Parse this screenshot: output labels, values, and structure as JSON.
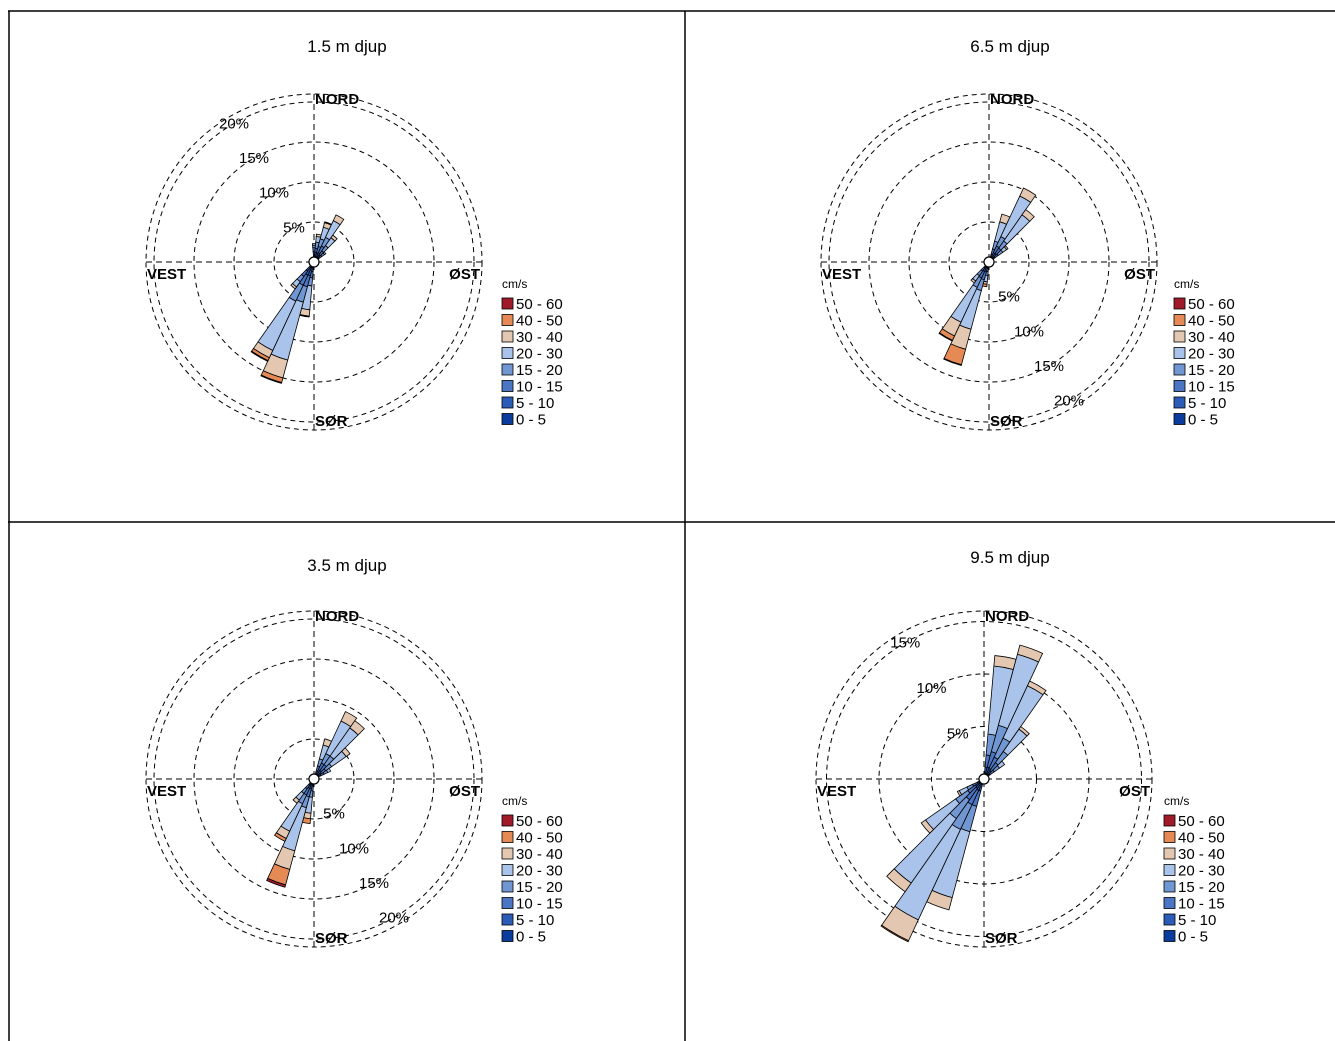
{
  "legend_unit": "cm/s",
  "speed_bins": [
    "0 - 5",
    "5 - 10",
    "10 - 15",
    "15 - 20",
    "20 - 30",
    "30 - 40",
    "40 - 50",
    "50 - 60"
  ],
  "bin_colors": [
    "#0a3c9e",
    "#2b5db8",
    "#4a76c4",
    "#7197d3",
    "#a9c3ea",
    "#e3c7b0",
    "#e58a55",
    "#a01a2a"
  ],
  "direction_labels": {
    "north": "NORD",
    "south": "SØR",
    "east": "ØST",
    "west": "VEST"
  },
  "chart_data": [
    {
      "type": "rose",
      "title": "1.5 m djup",
      "direction_sectors": 36,
      "speed_bins": [
        "0 - 5",
        "5 - 10",
        "10 - 15",
        "15 - 20",
        "20 - 30",
        "30 - 40",
        "40 - 50",
        "50 - 60"
      ],
      "rings": [
        5,
        10,
        15,
        20
      ],
      "ring_labels": [
        "5%",
        "10%",
        "15%",
        "20%"
      ],
      "ring_label_bearing": 330,
      "max_percent": 21,
      "petals": [
        {
          "dir": 0,
          "percent": [
            0.7,
            0.6,
            0.5,
            0.3,
            0.2,
            0,
            0,
            0
          ]
        },
        {
          "dir": 10,
          "percent": [
            0.6,
            0.6,
            0.5,
            0.8,
            0.7,
            0.3,
            0,
            0
          ]
        },
        {
          "dir": 20,
          "percent": [
            0.6,
            0.6,
            0.8,
            1.0,
            1.5,
            0.6,
            0.1,
            0
          ]
        },
        {
          "dir": 30,
          "percent": [
            0.6,
            0.7,
            0.9,
            1.2,
            2.3,
            0.8,
            0,
            0
          ]
        },
        {
          "dir": 40,
          "percent": [
            0.5,
            0.6,
            0.6,
            0.8,
            1.2,
            0.4,
            0,
            0
          ]
        },
        {
          "dir": 50,
          "percent": [
            0.4,
            0.4,
            0.4,
            0.4,
            0.2,
            0,
            0,
            0
          ]
        },
        {
          "dir": 190,
          "percent": [
            0.6,
            0.6,
            0.8,
            1.0,
            3.0,
            0.8,
            0.1,
            0
          ]
        },
        {
          "dir": 200,
          "percent": [
            0.8,
            1.0,
            1.4,
            2.0,
            7.5,
            2.3,
            0.6,
            0.1
          ]
        },
        {
          "dir": 210,
          "percent": [
            0.8,
            1.0,
            1.4,
            2.2,
            6.8,
            1.0,
            0.4,
            0.1
          ]
        },
        {
          "dir": 220,
          "percent": [
            0.6,
            0.8,
            0.8,
            0.8,
            0.8,
            0.3,
            0,
            0
          ]
        }
      ]
    },
    {
      "type": "rose",
      "title": "6.5 m djup",
      "direction_sectors": 36,
      "speed_bins": [
        "0 - 5",
        "5 - 10",
        "10 - 15",
        "15 - 20",
        "20 - 30",
        "30 - 40",
        "40 - 50",
        "50 - 60"
      ],
      "rings": [
        5,
        10,
        15,
        20
      ],
      "ring_labels": [
        "5%",
        "10%",
        "15%",
        "20%"
      ],
      "ring_label_bearing": 150,
      "max_percent": 21,
      "petals": [
        {
          "dir": 20,
          "percent": [
            0.5,
            0.5,
            0.7,
            1.0,
            2.5,
            1.0,
            0,
            0
          ]
        },
        {
          "dir": 30,
          "percent": [
            0.6,
            0.7,
            0.9,
            1.3,
            5.6,
            1.1,
            0,
            0
          ]
        },
        {
          "dir": 40,
          "percent": [
            0.6,
            0.7,
            0.8,
            1.1,
            4.0,
            0.8,
            0,
            0
          ]
        },
        {
          "dir": 50,
          "percent": [
            0.4,
            0.5,
            0.5,
            0.7,
            0.6,
            0.2,
            0,
            0
          ]
        },
        {
          "dir": 190,
          "percent": [
            0.4,
            0.4,
            0.4,
            0.5,
            0.8,
            0.3,
            0.3,
            0
          ]
        },
        {
          "dir": 200,
          "percent": [
            0.6,
            0.7,
            1.0,
            1.4,
            5.0,
            2.6,
            2.0,
            0.1
          ]
        },
        {
          "dir": 210,
          "percent": [
            0.6,
            0.7,
            0.9,
            1.3,
            4.8,
            1.9,
            0.6,
            0.1
          ]
        },
        {
          "dir": 220,
          "percent": [
            0.4,
            0.5,
            0.5,
            0.7,
            0.8,
            0.3,
            0,
            0
          ]
        }
      ]
    },
    {
      "type": "rose",
      "title": "3.5 m djup",
      "direction_sectors": 36,
      "speed_bins": [
        "0 - 5",
        "5 - 10",
        "10 - 15",
        "15 - 20",
        "20 - 30",
        "30 - 40",
        "40 - 50",
        "50 - 60"
      ],
      "rings": [
        5,
        10,
        15,
        20
      ],
      "ring_labels": [
        "5%",
        "10%",
        "15%",
        "20%"
      ],
      "ring_label_bearing": 150,
      "max_percent": 21,
      "petals": [
        {
          "dir": 20,
          "percent": [
            0.5,
            0.5,
            0.7,
            0.9,
            1.8,
            0.8,
            0,
            0
          ]
        },
        {
          "dir": 30,
          "percent": [
            0.6,
            0.7,
            0.9,
            1.3,
            4.5,
            1.3,
            0,
            0
          ]
        },
        {
          "dir": 40,
          "percent": [
            0.6,
            0.7,
            0.9,
            1.3,
            4.3,
            1.1,
            0,
            0
          ]
        },
        {
          "dir": 50,
          "percent": [
            0.5,
            0.6,
            0.7,
            0.9,
            2.2,
            0.6,
            0,
            0
          ]
        },
        {
          "dir": 60,
          "percent": [
            0.4,
            0.5,
            0.5,
            0.5,
            0.4,
            0,
            0,
            0
          ]
        },
        {
          "dir": 190,
          "percent": [
            0.4,
            0.5,
            0.6,
            0.8,
            2.0,
            0.7,
            0.6,
            0
          ]
        },
        {
          "dir": 200,
          "percent": [
            0.6,
            0.7,
            1.0,
            1.4,
            5.6,
            2.4,
            2.0,
            0.3
          ]
        },
        {
          "dir": 210,
          "percent": [
            0.6,
            0.7,
            0.9,
            1.2,
            3.8,
            1.0,
            0.4,
            0
          ]
        },
        {
          "dir": 220,
          "percent": [
            0.4,
            0.5,
            0.6,
            0.7,
            1.0,
            0.5,
            0,
            0
          ]
        }
      ]
    },
    {
      "type": "rose",
      "title": "9.5 m djup",
      "direction_sectors": 36,
      "speed_bins": [
        "0 - 5",
        "5 - 10",
        "10 - 15",
        "15 - 20",
        "20 - 30",
        "30 - 40",
        "40 - 50",
        "50 - 60"
      ],
      "rings": [
        5,
        10,
        15,
        20
      ],
      "ring_labels": [
        "5%",
        "10%",
        "15%"
      ],
      "ring_label_bearing": 330,
      "max_percent": 16,
      "petals": [
        {
          "dir": 10,
          "percent": [
            0.4,
            0.7,
            1.2,
            2.0,
            6.5,
            1.0,
            0,
            0
          ]
        },
        {
          "dir": 20,
          "percent": [
            0.4,
            0.8,
            1.5,
            2.6,
            7.0,
            0.9,
            0,
            0
          ]
        },
        {
          "dir": 30,
          "percent": [
            0.4,
            0.7,
            1.2,
            2.0,
            5.5,
            0.5,
            0,
            0
          ]
        },
        {
          "dir": 40,
          "percent": [
            0.4,
            0.6,
            0.9,
            1.3,
            2.6,
            0.3,
            0,
            0
          ]
        },
        {
          "dir": 50,
          "percent": [
            0.3,
            0.4,
            0.5,
            0.6,
            0.6,
            0,
            0,
            0
          ]
        },
        {
          "dir": 200,
          "percent": [
            0.4,
            0.8,
            1.5,
            2.5,
            6.5,
            1.2,
            0,
            0
          ]
        },
        {
          "dir": 210,
          "percent": [
            0.4,
            0.8,
            1.5,
            2.6,
            9.5,
            2.2,
            0.1,
            0
          ]
        },
        {
          "dir": 220,
          "percent": [
            0.4,
            0.7,
            1.3,
            2.2,
            7.5,
            1.0,
            0,
            0
          ]
        },
        {
          "dir": 230,
          "percent": [
            0.4,
            0.6,
            0.9,
            1.4,
            3.5,
            0.5,
            0,
            0
          ]
        },
        {
          "dir": 240,
          "percent": [
            0.3,
            0.4,
            0.5,
            0.6,
            0.8,
            0.2,
            0,
            0
          ]
        }
      ]
    }
  ]
}
